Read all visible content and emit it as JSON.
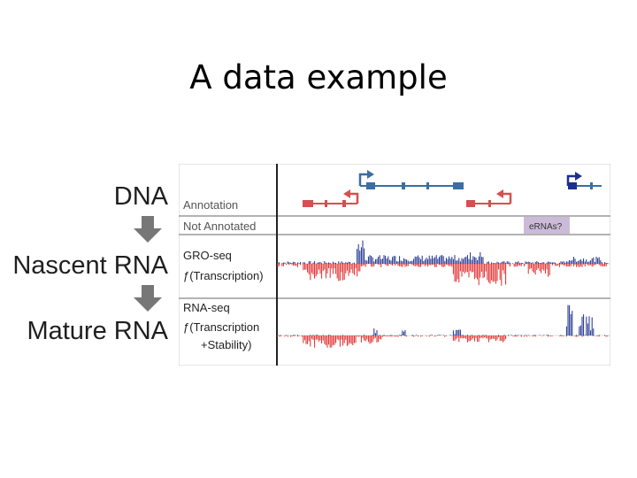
{
  "title": "A data example",
  "flow": {
    "dna": "DNA",
    "nascent": "Nascent RNA",
    "mature": "Mature RNA"
  },
  "figure": {
    "rows": [
      {
        "label": "Annotation"
      },
      {
        "label": "Not Annotated",
        "tag": "eRNAs?"
      },
      {
        "label": "GRO-seq",
        "sublabel": "ƒ(Transcription)"
      },
      {
        "label": "RNA-seq",
        "sublabel": "ƒ(Transcription",
        "sublabel2": "+Stability)"
      }
    ],
    "colors": {
      "plus_strand": "#1c2f8f",
      "minus_strand": "#e02a2a",
      "gene_plus": "#3a6ea5",
      "gene_minus": "#d55050",
      "tag_bg": "#cbbbd8",
      "arrow": "#777777"
    }
  }
}
